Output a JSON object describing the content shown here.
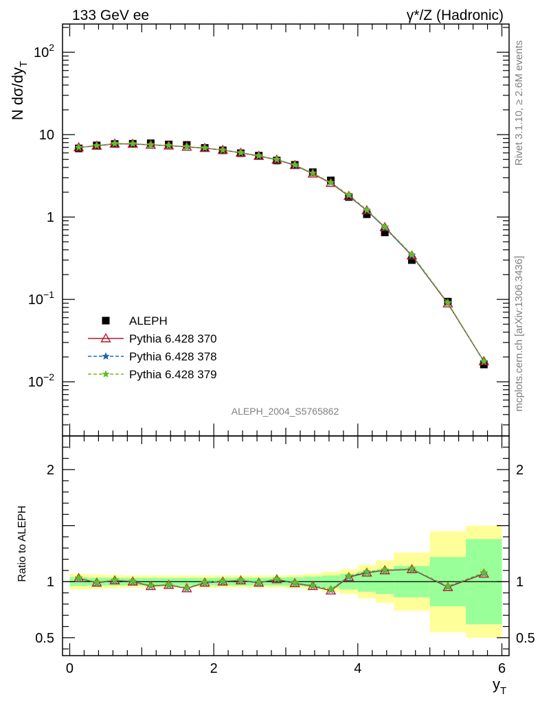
{
  "header": {
    "left_label": "133 GeV ee",
    "right_label": "γ*/Z (Hadronic)"
  },
  "side_labels": {
    "rivet": "Rivet 3.1.10, ≥ 2.6M events",
    "mcplots": "mcplots.cern.ch [arXiv:1306.3436]"
  },
  "watermark": "ALEPH_2004_S5765862",
  "chart_data": [
    {
      "type": "scatter",
      "panel": "main",
      "ylabel": "N dσ/dy_T",
      "yscale": "log",
      "xlim": [
        -0.1,
        6.1
      ],
      "ylim": [
        0.0022,
        220
      ],
      "x": [
        0.125,
        0.375,
        0.625,
        0.875,
        1.125,
        1.375,
        1.625,
        1.875,
        2.125,
        2.375,
        2.625,
        2.875,
        3.125,
        3.375,
        3.625,
        3.875,
        4.125,
        4.375,
        4.75,
        5.25,
        5.75
      ],
      "y_ticks": [
        {
          "value": 0.01,
          "label": "10",
          "exp": "−2"
        },
        {
          "value": 0.1,
          "label": "10",
          "exp": "−1"
        },
        {
          "value": 1,
          "label": "1",
          "exp": ""
        },
        {
          "value": 10,
          "label": "10",
          "exp": ""
        },
        {
          "value": 100,
          "label": "10",
          "exp": "2"
        }
      ],
      "legend": {
        "position": "middle-left"
      },
      "series": [
        {
          "name": "ALEPH",
          "marker": "square",
          "color": "#000000",
          "values": [
            6.8,
            7.4,
            7.7,
            7.75,
            7.85,
            7.6,
            7.5,
            6.9,
            6.45,
            5.95,
            5.55,
            4.85,
            4.3,
            3.5,
            2.78,
            1.75,
            1.08,
            0.65,
            0.3,
            0.094,
            0.0162
          ]
        },
        {
          "name": "Pythia 6.428 370",
          "marker": "triangle",
          "color": "#b2182b",
          "line": "solid",
          "values": [
            7.0,
            7.3,
            7.75,
            7.7,
            7.5,
            7.35,
            7.1,
            6.85,
            6.5,
            6.0,
            5.5,
            4.95,
            4.25,
            3.35,
            2.58,
            1.8,
            1.2,
            0.75,
            0.34,
            0.089,
            0.0177
          ]
        },
        {
          "name": "Pythia 6.428 378",
          "marker": "star",
          "color": "#2166ac",
          "line": "dashed",
          "values": [
            7.0,
            7.35,
            7.75,
            7.7,
            7.5,
            7.35,
            7.1,
            6.85,
            6.5,
            6.0,
            5.5,
            4.95,
            4.25,
            3.4,
            2.6,
            1.82,
            1.2,
            0.74,
            0.34,
            0.09,
            0.0175
          ]
        },
        {
          "name": "Pythia 6.428 379",
          "marker": "star",
          "color": "#66bd27",
          "line": "dashed",
          "values": [
            7.0,
            7.35,
            7.8,
            7.75,
            7.55,
            7.4,
            7.15,
            6.9,
            6.5,
            6.05,
            5.55,
            5.0,
            4.3,
            3.4,
            2.62,
            1.85,
            1.22,
            0.76,
            0.35,
            0.091,
            0.0178
          ]
        }
      ]
    },
    {
      "type": "line",
      "panel": "ratio",
      "ylabel": "Ratio to ALEPH",
      "xlabel": "y_T",
      "xlim": [
        -0.1,
        6.1
      ],
      "ylim": [
        0.34,
        2.3
      ],
      "x_ticks": [
        0,
        2,
        4,
        6
      ],
      "y_ticks": [
        0.5,
        1,
        2
      ],
      "reference_line": 1,
      "bin_edges": [
        0,
        0.25,
        0.5,
        0.75,
        1.0,
        1.25,
        1.5,
        1.75,
        2.0,
        2.25,
        2.5,
        2.75,
        3.0,
        3.25,
        3.5,
        3.75,
        4.0,
        4.25,
        4.5,
        5.0,
        5.5,
        6.0
      ],
      "band_stat": [
        0.04,
        0.035,
        0.035,
        0.033,
        0.033,
        0.033,
        0.033,
        0.033,
        0.035,
        0.035,
        0.035,
        0.035,
        0.04,
        0.045,
        0.055,
        0.07,
        0.09,
        0.11,
        0.14,
        0.22,
        0.38
      ],
      "band_total": [
        0.07,
        0.065,
        0.06,
        0.055,
        0.055,
        0.055,
        0.055,
        0.055,
        0.055,
        0.055,
        0.055,
        0.055,
        0.06,
        0.07,
        0.09,
        0.11,
        0.15,
        0.19,
        0.26,
        0.45,
        0.5
      ],
      "band_colors": {
        "stat": "#99ff99",
        "total": "#ffff99"
      },
      "x": [
        0.125,
        0.375,
        0.625,
        0.875,
        1.125,
        1.375,
        1.625,
        1.875,
        2.125,
        2.375,
        2.625,
        2.875,
        3.125,
        3.375,
        3.625,
        3.875,
        4.125,
        4.375,
        4.75,
        5.25,
        5.75
      ],
      "series": [
        {
          "name": "Pythia 6.428 370",
          "color": "#b2182b",
          "values": [
            1.03,
            0.99,
            1.01,
            1.0,
            0.96,
            0.97,
            0.94,
            0.99,
            1.0,
            1.01,
            0.99,
            1.02,
            0.985,
            0.96,
            0.92,
            1.04,
            1.08,
            1.1,
            1.11,
            0.95,
            1.07
          ]
        },
        {
          "name": "Pythia 6.428 378",
          "color": "#2166ac",
          "values": [
            1.03,
            0.99,
            1.01,
            1.0,
            0.96,
            0.97,
            0.94,
            0.99,
            1.0,
            1.01,
            0.99,
            1.02,
            0.985,
            0.96,
            0.925,
            1.045,
            1.085,
            1.1,
            1.11,
            0.955,
            1.075
          ]
        },
        {
          "name": "Pythia 6.428 379",
          "color": "#66bd27",
          "values": [
            1.035,
            0.995,
            1.015,
            1.005,
            0.965,
            0.975,
            0.945,
            0.995,
            1.005,
            1.015,
            0.995,
            1.025,
            0.99,
            0.965,
            0.93,
            1.05,
            1.09,
            1.105,
            1.115,
            0.96,
            1.08
          ]
        }
      ]
    }
  ]
}
